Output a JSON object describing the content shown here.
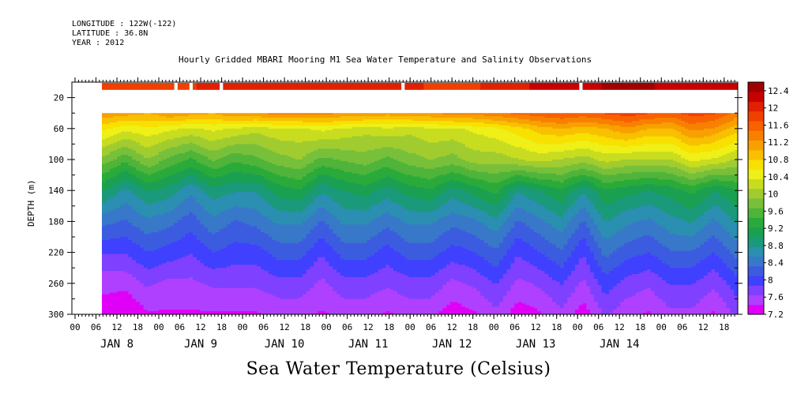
{
  "meta": {
    "longitude": "LONGITUDE : 122W(-122)",
    "latitude": "LATITUDE : 36.8N",
    "year": "YEAR : 2012"
  },
  "chart_data": {
    "type": "heatmap",
    "title": "Hourly Gridded MBARI Mooring M1 Sea Water Temperature and Salinity Observations",
    "bottom_title": "Sea Water Temperature (Celsius)",
    "ylabel": "DEPTH (m)",
    "xlabel": "",
    "y_axis": {
      "inverted": true,
      "ylim": [
        0,
        300
      ],
      "ticks": [
        20,
        60,
        100,
        140,
        180,
        220,
        260,
        300
      ]
    },
    "x_axis": {
      "hour_labels": [
        "00",
        "06",
        "12",
        "18",
        "00",
        "06",
        "12",
        "18",
        "00",
        "06",
        "12",
        "18",
        "00",
        "06",
        "12",
        "18",
        "00",
        "06",
        "12",
        "18",
        "00",
        "06",
        "12",
        "18",
        "00",
        "06",
        "12",
        "18",
        "00",
        "06",
        "12",
        "18"
      ],
      "day_labels": [
        "JAN  8",
        "JAN  9",
        "JAN 10",
        "JAN 11",
        "JAN 12",
        "JAN 13",
        "JAN 14"
      ],
      "start": "2012-01-08 06:00",
      "end": "2012-01-14 23:00"
    },
    "colorbar": {
      "ticks": [
        "12.4",
        "12",
        "11.6",
        "11.2",
        "10.8",
        "10.4",
        "10",
        "9.6",
        "9.2",
        "8.8",
        "8.4",
        "8",
        "7.6",
        "7.2"
      ],
      "min": 7.2,
      "max": 12.6,
      "colors": [
        "#e000f8",
        "#b040ff",
        "#8040ff",
        "#4040ff",
        "#3c5ce0",
        "#3878c8",
        "#2a8fb0",
        "#1a9a7a",
        "#1aa050",
        "#2aaa3a",
        "#50b43a",
        "#78c03a",
        "#a0cc30",
        "#c8dc20",
        "#eef018",
        "#f8e000",
        "#f8c000",
        "#f8a000",
        "#f88000",
        "#f86000",
        "#f04000",
        "#e02000",
        "#c80000",
        "#a00000"
      ]
    },
    "series": [
      {
        "depth_m": 10,
        "temperature_c": [
          11.8,
          11.8,
          11.8,
          11.9,
          11.9,
          12.0,
          12.0,
          12.0,
          12.0,
          12.1,
          12.1,
          12.1,
          12.0,
          12.0,
          12.0,
          11.9,
          11.9,
          11.9,
          12.0,
          12.1,
          12.2,
          12.3,
          12.3,
          12.4,
          12.4,
          12.4,
          12.3,
          12.3,
          12.2,
          12.2
        ]
      },
      {
        "depth_m": 40,
        "temperature_c": [
          11.2,
          11.1,
          11.0,
          11.2,
          11.1,
          11.0,
          11.2,
          11.2,
          11.3,
          11.3,
          11.3,
          11.2,
          11.2,
          11.1,
          11.2,
          11.2,
          11.3,
          11.3,
          11.4,
          11.5,
          11.6,
          11.7,
          11.6,
          11.7,
          11.8,
          11.7,
          11.6,
          11.8,
          11.7,
          11.4
        ]
      },
      {
        "depth_m": 60,
        "temperature_c": [
          10.6,
          10.4,
          10.5,
          10.4,
          10.3,
          10.4,
          10.3,
          10.2,
          10.3,
          10.3,
          10.4,
          10.3,
          10.2,
          10.3,
          10.2,
          10.3,
          10.3,
          10.4,
          10.5,
          10.7,
          10.9,
          11.0,
          10.9,
          11.0,
          11.2,
          11.0,
          11.0,
          11.3,
          11.2,
          10.9
        ]
      },
      {
        "depth_m": 100,
        "temperature_c": [
          9.8,
          9.5,
          9.9,
          9.6,
          9.4,
          9.7,
          9.5,
          9.6,
          9.8,
          9.9,
          9.6,
          9.7,
          9.8,
          9.6,
          9.8,
          9.9,
          9.8,
          10.0,
          10.0,
          10.1,
          10.2,
          10.1,
          10.0,
          10.2,
          10.1,
          10.1,
          10.1,
          10.4,
          10.3,
          10.1
        ]
      },
      {
        "depth_m": 140,
        "temperature_c": [
          9.0,
          8.7,
          9.0,
          8.9,
          8.6,
          8.9,
          8.8,
          8.8,
          9.1,
          9.2,
          8.8,
          9.0,
          9.1,
          8.9,
          9.1,
          9.2,
          8.9,
          9.1,
          9.3,
          8.8,
          9.0,
          9.2,
          8.8,
          9.2,
          9.1,
          9.0,
          9.1,
          9.3,
          9.0,
          9.2
        ]
      },
      {
        "depth_m": 180,
        "temperature_c": [
          8.4,
          8.3,
          8.5,
          8.4,
          8.2,
          8.5,
          8.3,
          8.4,
          8.6,
          8.6,
          8.3,
          8.6,
          8.6,
          8.4,
          8.6,
          8.6,
          8.4,
          8.5,
          8.7,
          8.3,
          8.5,
          8.7,
          8.3,
          8.8,
          8.6,
          8.5,
          8.7,
          8.8,
          8.5,
          8.8
        ]
      },
      {
        "depth_m": 220,
        "temperature_c": [
          7.9,
          7.9,
          8.1,
          8.0,
          7.9,
          8.1,
          8.0,
          8.0,
          8.2,
          8.2,
          7.9,
          8.2,
          8.2,
          8.0,
          8.2,
          8.2,
          8.0,
          8.1,
          8.3,
          7.9,
          8.1,
          8.3,
          7.9,
          8.4,
          8.2,
          8.1,
          8.3,
          8.3,
          8.1,
          8.4
        ]
      },
      {
        "depth_m": 260,
        "temperature_c": [
          7.5,
          7.5,
          7.7,
          7.6,
          7.6,
          7.7,
          7.7,
          7.7,
          7.8,
          7.8,
          7.6,
          7.8,
          7.8,
          7.7,
          7.8,
          7.8,
          7.6,
          7.7,
          7.9,
          7.6,
          7.7,
          7.9,
          7.6,
          8.0,
          7.8,
          7.7,
          7.9,
          7.9,
          7.7,
          8.0
        ]
      },
      {
        "depth_m": 300,
        "temperature_c": [
          7.3,
          7.2,
          7.4,
          7.4,
          7.4,
          7.4,
          7.4,
          7.4,
          7.5,
          7.5,
          7.4,
          7.5,
          7.5,
          7.4,
          7.5,
          7.5,
          7.3,
          7.4,
          7.6,
          7.3,
          7.4,
          7.6,
          7.3,
          7.7,
          7.5,
          7.4,
          7.6,
          7.6,
          7.4,
          7.7
        ]
      }
    ]
  }
}
